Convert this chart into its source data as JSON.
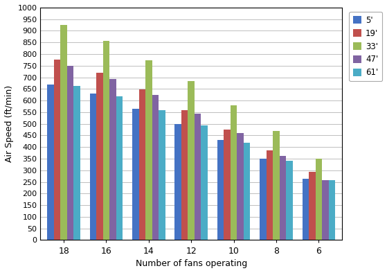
{
  "categories": [
    18,
    16,
    14,
    12,
    10,
    8,
    6
  ],
  "series": {
    "5'": [
      670,
      630,
      565,
      500,
      430,
      350,
      265
    ],
    "19'": [
      775,
      720,
      648,
      560,
      475,
      385,
      293
    ],
    "33'": [
      925,
      858,
      773,
      683,
      580,
      468,
      350
    ],
    "47'": [
      750,
      693,
      623,
      545,
      460,
      363,
      258
    ],
    "61'": [
      663,
      618,
      558,
      493,
      418,
      340,
      258
    ]
  },
  "colors": {
    "5'": "#4472C4",
    "19'": "#C0504D",
    "33'": "#9BBB59",
    "47'": "#8064A2",
    "61'": "#4BACC6"
  },
  "xlabel": "Number of fans operating",
  "ylabel": "Air Speed (ft/min)",
  "ylim": [
    0,
    1000
  ],
  "background_color": "#FFFFFF",
  "plot_bg_color": "#FFFFFF",
  "grid_color": "#BFBFBF"
}
